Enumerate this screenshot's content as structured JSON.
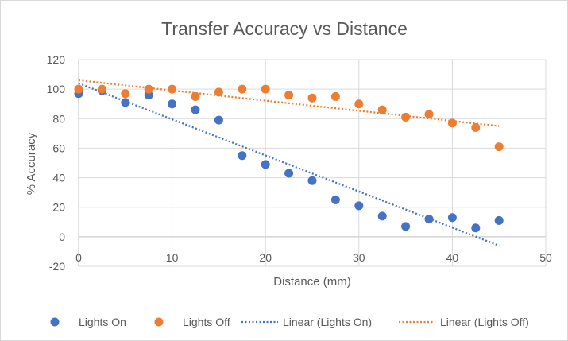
{
  "chart_data": {
    "type": "scatter",
    "title": "Transfer Accuracy vs Distance",
    "xlabel": "Distance (mm)",
    "ylabel": "% Accuracy",
    "xlim": [
      0,
      50
    ],
    "ylim": [
      -20,
      120
    ],
    "xticks": [
      0,
      10,
      20,
      30,
      40,
      50
    ],
    "yticks": [
      -20,
      0,
      20,
      40,
      60,
      80,
      100,
      120
    ],
    "grid": true,
    "legend_position": "bottom",
    "series": [
      {
        "name": "Lights On",
        "color": "#4472c4",
        "x": [
          0,
          2.5,
          5,
          7.5,
          10,
          12.5,
          15,
          17.5,
          20,
          22.5,
          25,
          27.5,
          30,
          32.5,
          35,
          37.5,
          40,
          42.5,
          45
        ],
        "y": [
          97,
          99,
          91,
          96,
          90,
          86,
          79,
          55,
          49,
          43,
          38,
          25,
          21,
          14,
          7,
          12,
          13,
          6,
          11
        ]
      },
      {
        "name": "Lights Off",
        "color": "#ed7d31",
        "x": [
          0,
          2.5,
          5,
          7.5,
          10,
          12.5,
          15,
          17.5,
          20,
          22.5,
          25,
          27.5,
          30,
          32.5,
          35,
          37.5,
          40,
          42.5,
          45
        ],
        "y": [
          100,
          100,
          97,
          100,
          100,
          95,
          98,
          100,
          100,
          96,
          94,
          95,
          90,
          86,
          81,
          83,
          77,
          74,
          61
        ]
      }
    ],
    "trendlines": [
      {
        "name": "Linear (Lights On)",
        "color": "#4472c4",
        "x": [
          0,
          45
        ],
        "y": [
          104,
          -6
        ]
      },
      {
        "name": "Linear (Lights Off)",
        "color": "#ed7d31",
        "x": [
          0,
          45
        ],
        "y": [
          106,
          75
        ]
      }
    ]
  }
}
